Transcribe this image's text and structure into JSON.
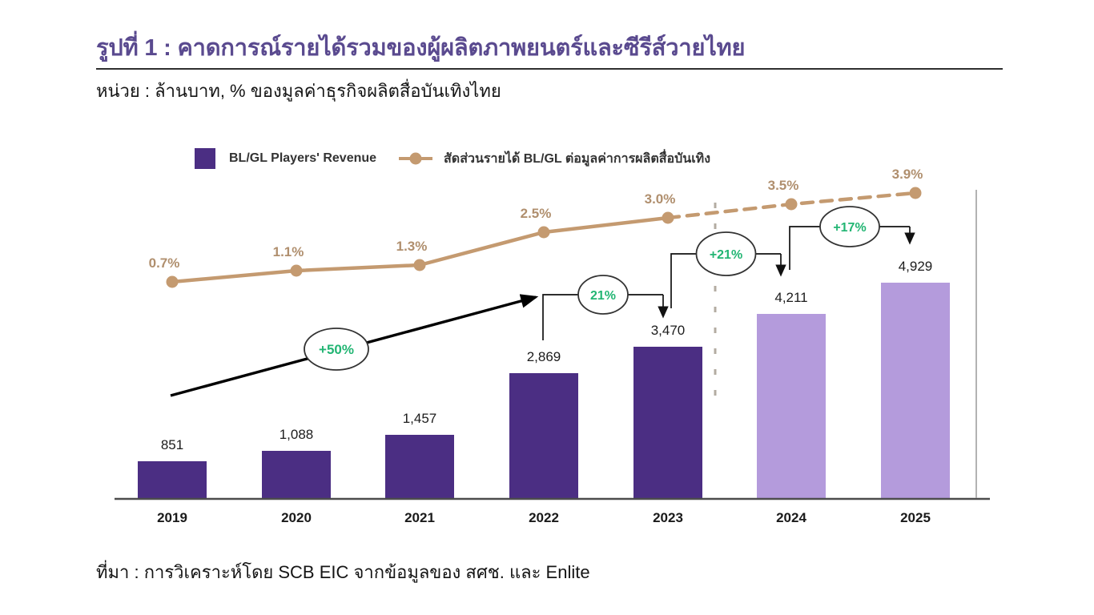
{
  "header": {
    "figure_title": "รูปที่ 1 : คาดการณ์รายได้รวมของผู้ผลิตภาพยนตร์และซีรีส์วายไทย",
    "unit_label": "หน่วย : ล้านบาท, % ของมูลค่าธุรกิจผลิตสื่อบันเทิงไทย"
  },
  "legend": {
    "bar_label": "BL/GL Players' Revenue",
    "line_label": "สัดส่วนรายได้ BL/GL ต่อมูลค่าการผลิตสื่อบันเทิง"
  },
  "chart_data": {
    "type": "bar",
    "title": "คาดการณ์รายได้รวมของผู้ผลิตภาพยนตร์และซีรีส์วายไทย",
    "unit": "ล้านบาท, % ของมูลค่าธุรกิจผลิตสื่อบันเทิงไทย",
    "categories": [
      "2019",
      "2020",
      "2021",
      "2022",
      "2023",
      "2024",
      "2025"
    ],
    "series": [
      {
        "name": "BL/GL Players' Revenue",
        "type": "bar",
        "values": [
          851,
          1088,
          1457,
          2869,
          3470,
          4211,
          4929
        ],
        "value_labels": [
          "851",
          "1,088",
          "1,457",
          "2,869",
          "3,470",
          "4,211",
          "4,929"
        ],
        "forecast_from_index": 5
      },
      {
        "name": "สัดส่วนรายได้ BL/GL ต่อมูลค่าการผลิตสื่อบันเทิง",
        "type": "line",
        "values": [
          0.7,
          1.1,
          1.3,
          2.5,
          3.0,
          3.5,
          3.9
        ],
        "value_labels": [
          "0.7%",
          "1.1%",
          "1.3%",
          "2.5%",
          "3.0%",
          "3.5%",
          "3.9%"
        ],
        "dashed_from_index": 4
      }
    ],
    "annotations": {
      "growth_arrow": {
        "label": "+50%",
        "from": "2019",
        "to": "2022"
      },
      "brackets": [
        {
          "label": "21%",
          "from": "2022",
          "to": "2023"
        },
        {
          "label": "+21%",
          "from": "2023",
          "to": "2024"
        },
        {
          "label": "+17%",
          "from": "2024",
          "to": "2025"
        }
      ]
    },
    "layout_hints": {
      "grid": false,
      "legend_position": "top",
      "forecast_divider_between": [
        "2023",
        "2024"
      ],
      "x_axis_line": true,
      "right_plot_border": true
    },
    "colors": {
      "bar_actual": "#4b2e83",
      "bar_forecast": "#b49bdc",
      "line": "#c49a70",
      "pct_text": "#b08f6e",
      "growth_green": "#22b573",
      "title_purple": "#5a4a8f"
    }
  },
  "source": {
    "text": "ที่มา : การวิเคราะห์โดย SCB EIC จากข้อมูลของ สศช. และ Enlite"
  }
}
